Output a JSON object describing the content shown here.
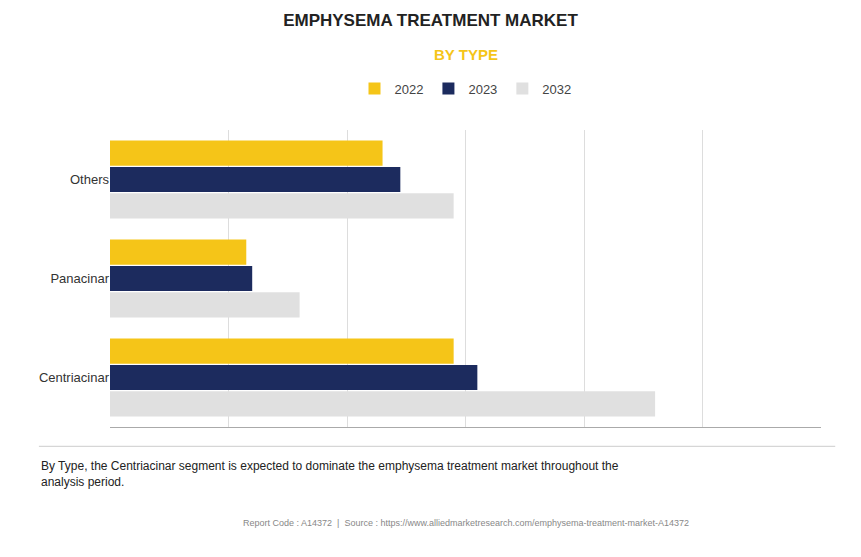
{
  "chart_data": {
    "type": "bar",
    "orientation": "horizontal",
    "title": "EMPHYSEMA TREATMENT MARKET",
    "subtitle": "BY TYPE",
    "subtitle_color": "#F5C518",
    "categories": [
      "Centriacinar",
      "Panacinar",
      "Others"
    ],
    "series": [
      {
        "name": "2022",
        "color": "#F5C518",
        "values": [
          5.8,
          2.3,
          4.6
        ]
      },
      {
        "name": "2023",
        "color": "#1C2B5E",
        "values": [
          6.2,
          2.4,
          4.9
        ]
      },
      {
        "name": "2032",
        "color": "#E0E0E0",
        "values": [
          9.2,
          3.2,
          5.8
        ]
      }
    ],
    "xlim": [
      0,
      12
    ],
    "xticks": [
      0,
      2,
      4,
      6,
      8,
      10,
      12
    ],
    "grid": true,
    "tick_labels": "y",
    "legend": "top",
    "annotations": [
      "By Type, the Centriacinar segment is expected to dominate the emphysema treatment market throughout the\nanalysis period.",
      "Report Code : A14372  |  Source : https://www.alliedmarketresearch.com/emphysema-treatment-market-A14372"
    ]
  }
}
